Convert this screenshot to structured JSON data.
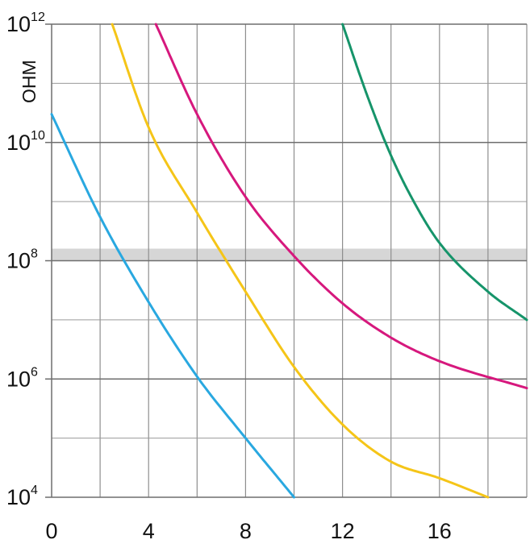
{
  "chart_data": {
    "type": "line",
    "title": "",
    "xlabel": "",
    "ylabel": "OHM",
    "y_scale": "log",
    "xlim": [
      0,
      19.6
    ],
    "ylim": [
      10000,
      1000000000000
    ],
    "x_ticks": [
      "0",
      "4",
      "8",
      "12",
      "16"
    ],
    "y_ticks": [
      {
        "base": "10",
        "exp": "4"
      },
      {
        "base": "10",
        "exp": "6"
      },
      {
        "base": "10",
        "exp": "8"
      },
      {
        "base": "10",
        "exp": "10"
      },
      {
        "base": "10",
        "exp": "12"
      }
    ],
    "grid": true,
    "highlight_band": {
      "y_from": 100000000,
      "y_to": 160000000,
      "color": "#d6d6d6"
    },
    "series": [
      {
        "color": "#29a8e0",
        "x": [
          0,
          2,
          4,
          6,
          8,
          10
        ],
        "y": [
          30000000000,
          550000000,
          20000000,
          1100000,
          100000,
          10000
        ]
      },
      {
        "color": "#f5c518",
        "x": [
          2.5,
          4,
          6,
          8,
          10,
          12,
          14,
          16,
          18
        ],
        "y": [
          1000000000000,
          18000000000,
          650000000,
          30000000,
          1600000,
          170000,
          40000,
          21000,
          10000
        ]
      },
      {
        "color": "#d6187d",
        "x": [
          4.3,
          6,
          8,
          10,
          12,
          14,
          16,
          19.6
        ],
        "y": [
          1000000000000,
          30000000000,
          1200000000,
          120000000,
          19000000,
          5000000,
          2000000,
          700000
        ]
      },
      {
        "color": "#16946a",
        "x": [
          12,
          13,
          14,
          15,
          16,
          18,
          19.6
        ],
        "y": [
          1000000000000,
          65000000000,
          6000000000,
          900000000,
          200000000,
          30000000,
          10000000
        ]
      }
    ]
  }
}
